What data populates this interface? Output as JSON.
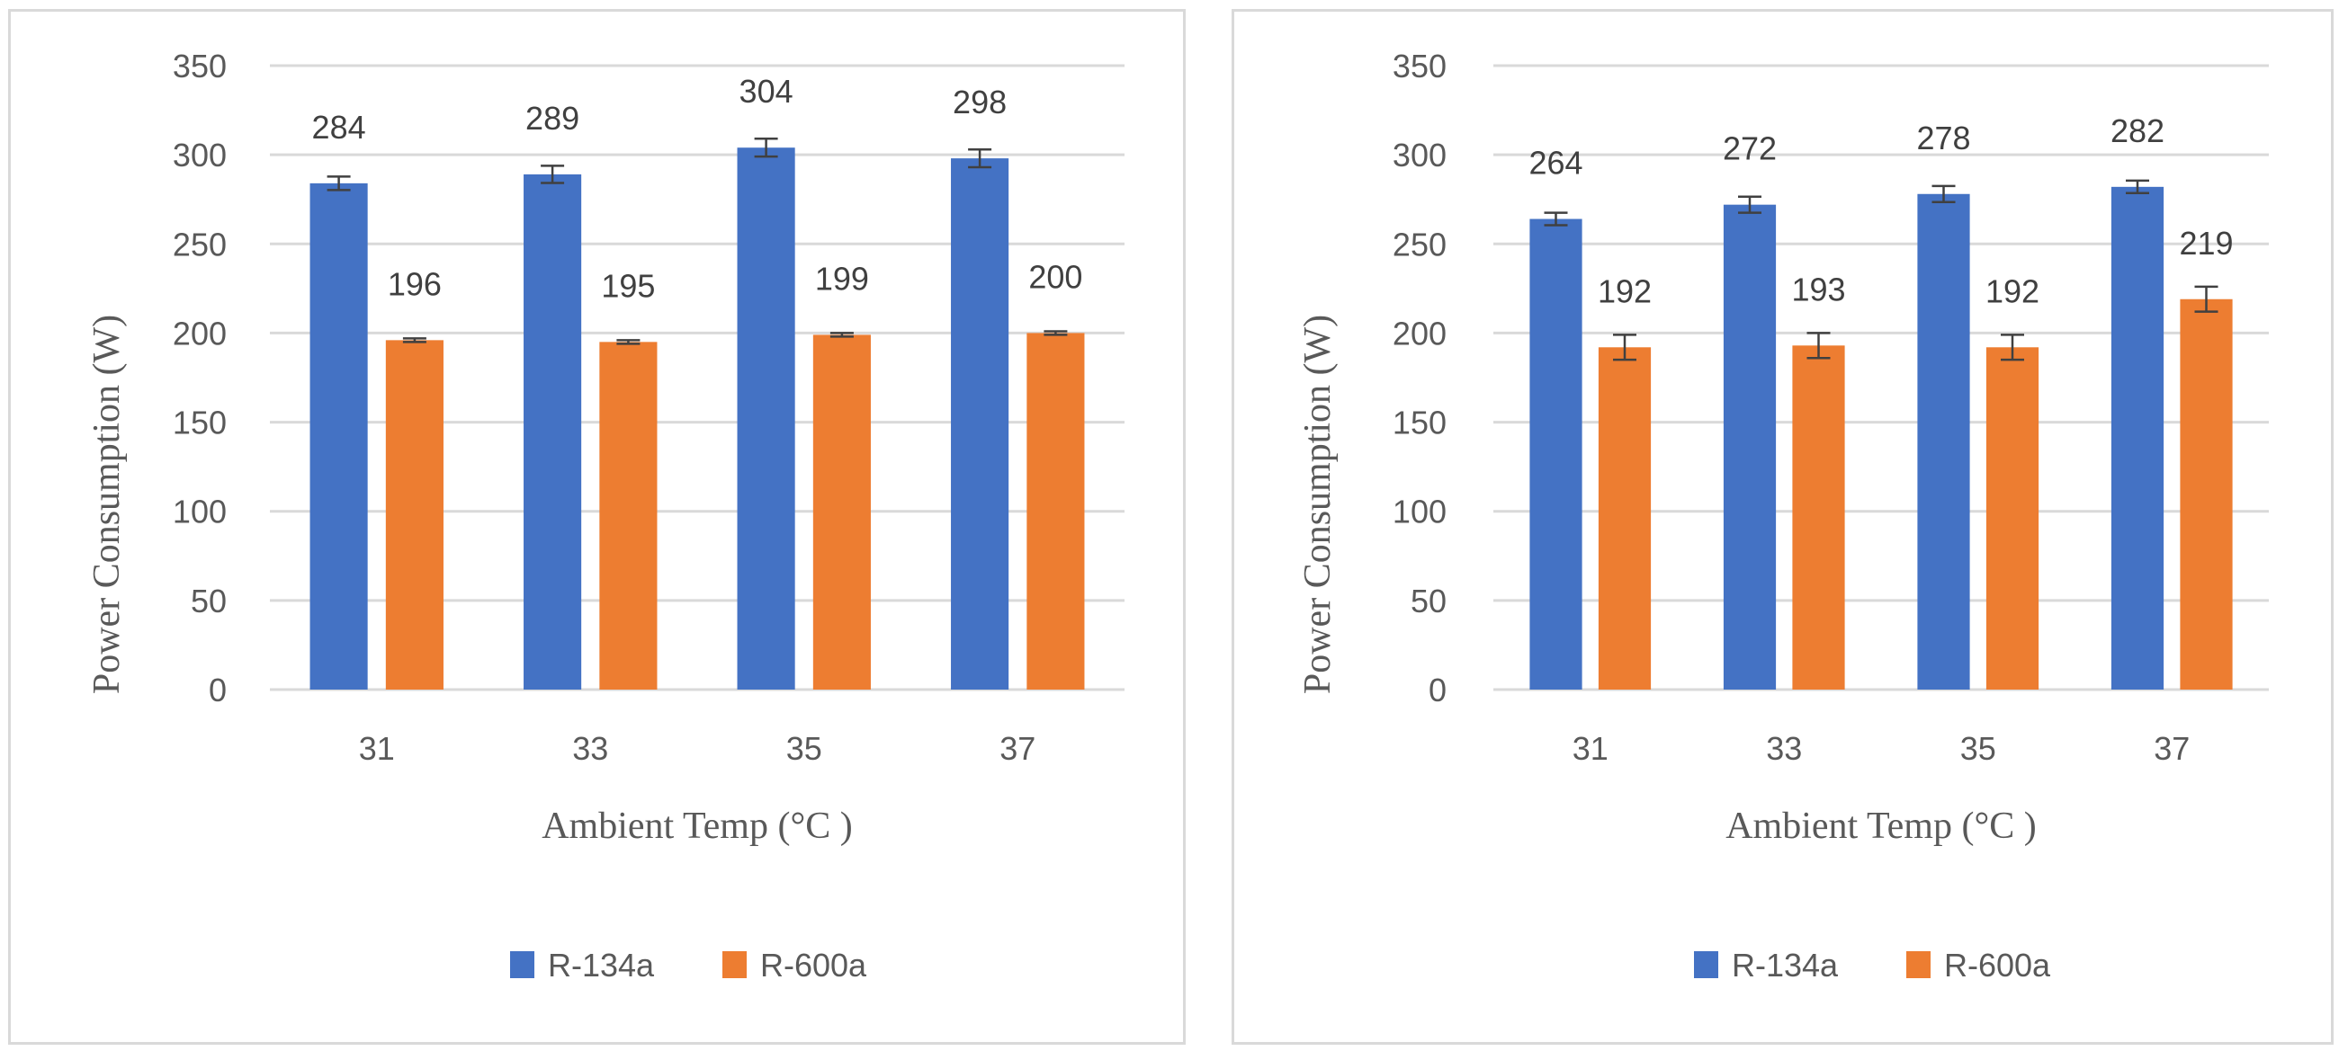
{
  "chart_data": [
    {
      "type": "bar",
      "title": "",
      "xlabel": "Ambient Temp (°C )",
      "ylabel": "Power Consumption (W)",
      "categories": [
        "31",
        "33",
        "35",
        "37"
      ],
      "ylim": [
        0,
        350
      ],
      "yticks": [
        0,
        50,
        100,
        150,
        200,
        250,
        300,
        350
      ],
      "grid": true,
      "legend": "bottom",
      "series": [
        {
          "name": "R-134a",
          "color": "#4472C4",
          "values": [
            284,
            289,
            304,
            298
          ],
          "labels": [
            "284",
            "289",
            "304",
            "298"
          ],
          "error": [
            3.8,
            4.8,
            5,
            5
          ]
        },
        {
          "name": "R-600a",
          "color": "#ED7D31",
          "values": [
            196,
            195,
            199,
            200
          ],
          "labels": [
            "196",
            "195",
            "199",
            "200"
          ],
          "error": [
            1,
            1,
            1,
            1
          ]
        }
      ]
    },
    {
      "type": "bar",
      "title": "",
      "xlabel": "Ambient Temp (°C )",
      "ylabel": "Power Consumption (W)",
      "categories": [
        "31",
        "33",
        "35",
        "37"
      ],
      "ylim": [
        0,
        350
      ],
      "yticks": [
        0,
        50,
        100,
        150,
        200,
        250,
        300,
        350
      ],
      "grid": true,
      "legend": "bottom",
      "series": [
        {
          "name": "R-134a",
          "color": "#4472C4",
          "values": [
            264,
            272,
            278,
            282
          ],
          "labels": [
            "264",
            "272",
            "278",
            "282"
          ],
          "error": [
            3.5,
            4.5,
            4.5,
            3.5
          ]
        },
        {
          "name": "R-600a",
          "color": "#ED7D31",
          "values": [
            192,
            193,
            192,
            219
          ],
          "labels": [
            "192",
            "193",
            "192",
            "219"
          ],
          "error": [
            7,
            7,
            7,
            7
          ]
        }
      ]
    }
  ]
}
